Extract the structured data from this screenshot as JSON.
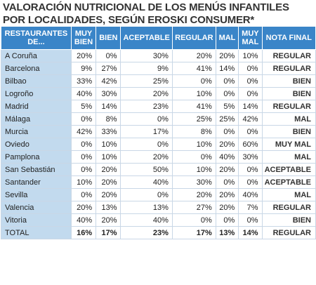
{
  "title_line1": "VALORACIÓN NUTRICIONAL DE LOS MENÚS INFANTILES",
  "title_line2": "POR LOCALIDADES, SEGÚN EROSKI CONSUMER*",
  "columns": [
    "RESTAURANTES DE...",
    "MUY BIEN",
    "BIEN",
    "ACEPTABLE",
    "REGULAR",
    "MAL",
    "MUY MAL",
    "NOTA FINAL"
  ],
  "rows": [
    {
      "city": "A Coruña",
      "muy_bien": "20%",
      "bien": "0%",
      "aceptable": "30%",
      "regular": "20%",
      "mal": "20%",
      "muy_mal": "10%",
      "nota": "REGULAR"
    },
    {
      "city": "Barcelona",
      "muy_bien": "9%",
      "bien": "27%",
      "aceptable": "9%",
      "regular": "41%",
      "mal": "14%",
      "muy_mal": "0%",
      "nota": "REGULAR"
    },
    {
      "city": "Bilbao",
      "muy_bien": "33%",
      "bien": "42%",
      "aceptable": "25%",
      "regular": "0%",
      "mal": "0%",
      "muy_mal": "0%",
      "nota": "BIEN"
    },
    {
      "city": "Logroño",
      "muy_bien": "40%",
      "bien": "30%",
      "aceptable": "20%",
      "regular": "10%",
      "mal": "0%",
      "muy_mal": "0%",
      "nota": "BIEN"
    },
    {
      "city": "Madrid",
      "muy_bien": "5%",
      "bien": "14%",
      "aceptable": "23%",
      "regular": "41%",
      "mal": "5%",
      "muy_mal": "14%",
      "nota": "REGULAR"
    },
    {
      "city": "Málaga",
      "muy_bien": "0%",
      "bien": "8%",
      "aceptable": "0%",
      "regular": "25%",
      "mal": "25%",
      "muy_mal": "42%",
      "nota": "MAL"
    },
    {
      "city": "Murcia",
      "muy_bien": "42%",
      "bien": "33%",
      "aceptable": "17%",
      "regular": "8%",
      "mal": "0%",
      "muy_mal": "0%",
      "nota": "BIEN"
    },
    {
      "city": "Oviedo",
      "muy_bien": "0%",
      "bien": "10%",
      "aceptable": "0%",
      "regular": "10%",
      "mal": "20%",
      "muy_mal": "60%",
      "nota": "MUY MAL"
    },
    {
      "city": "Pamplona",
      "muy_bien": "0%",
      "bien": "10%",
      "aceptable": "20%",
      "regular": "0%",
      "mal": "40%",
      "muy_mal": "30%",
      "nota": "MAL"
    },
    {
      "city": "San Sebastián",
      "muy_bien": "0%",
      "bien": "20%",
      "aceptable": "50%",
      "regular": "10%",
      "mal": "20%",
      "muy_mal": "0%",
      "nota": "ACEPTABLE"
    },
    {
      "city": "Santander",
      "muy_bien": "10%",
      "bien": "20%",
      "aceptable": "40%",
      "regular": "30%",
      "mal": "0%",
      "muy_mal": "0%",
      "nota": "ACEPTABLE"
    },
    {
      "city": "Sevilla",
      "muy_bien": "0%",
      "bien": "20%",
      "aceptable": "0%",
      "regular": "20%",
      "mal": "20%",
      "muy_mal": "40%",
      "nota": "MAL"
    },
    {
      "city": "Valencia",
      "muy_bien": "20%",
      "bien": "13%",
      "aceptable": "13%",
      "regular": "27%",
      "mal": "20%",
      "muy_mal": "7%",
      "nota": "REGULAR"
    },
    {
      "city": "Vitoria",
      "muy_bien": "40%",
      "bien": "20%",
      "aceptable": "40%",
      "regular": "0%",
      "mal": "0%",
      "muy_mal": "0%",
      "nota": "BIEN"
    }
  ],
  "total": {
    "city": "TOTAL",
    "muy_bien": "16%",
    "bien": "17%",
    "aceptable": "23%",
    "regular": "17%",
    "mal": "13%",
    "muy_mal": "14%",
    "nota": "REGULAR"
  },
  "colors": {
    "header_bg": "#3a85c8",
    "city_bg": "#c2daee",
    "header_text": "#ffffff"
  }
}
